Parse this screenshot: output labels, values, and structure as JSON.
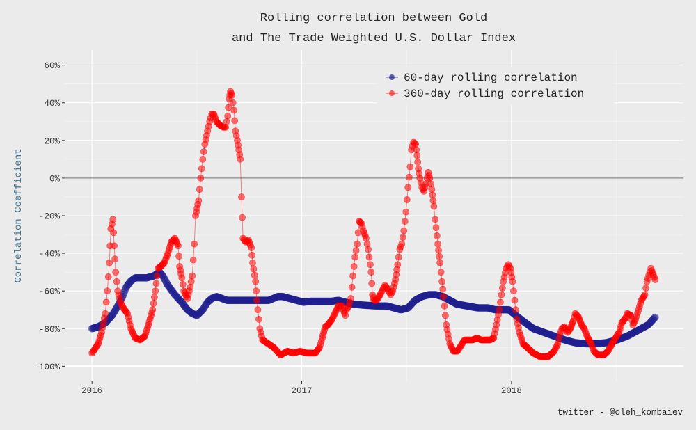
{
  "chart_data": {
    "type": "line",
    "title": "Rolling correlation between Gold",
    "subtitle": "and The Trade Weighted U.S. Dollar Index",
    "xlabel": "",
    "ylabel": "Correlation Coefficient",
    "caption": "twitter - @oleh_kombaiev",
    "x_ticks": [
      {
        "value": 2016,
        "label": "2016"
      },
      {
        "value": 2017,
        "label": "2017"
      },
      {
        "value": 2018,
        "label": "2018"
      }
    ],
    "y_ticks": [
      {
        "value": 60,
        "label": "60%"
      },
      {
        "value": 40,
        "label": "40%"
      },
      {
        "value": 20,
        "label": "20%"
      },
      {
        "value": 0,
        "label": "0%"
      },
      {
        "value": -20,
        "label": "-20%"
      },
      {
        "value": -40,
        "label": "-40%"
      },
      {
        "value": -60,
        "label": "-60%"
      },
      {
        "value": -80,
        "label": "-80%"
      },
      {
        "value": -100,
        "label": "-100%"
      }
    ],
    "xlim": [
      2015.87,
      2018.82
    ],
    "ylim": [
      -108,
      68
    ],
    "grid": true,
    "reference_line_y": 0,
    "legend_position": "top-right",
    "series": [
      {
        "name": "60-day rolling correlation",
        "color": "#1f1f8f",
        "x_unit": "year (decimal)",
        "points": [
          [
            2016.0,
            -80
          ],
          [
            2016.03,
            -79
          ],
          [
            2016.063,
            -77
          ],
          [
            2016.096,
            -73
          ],
          [
            2016.123,
            -68
          ],
          [
            2016.146,
            -63
          ],
          [
            2016.163,
            -58
          ],
          [
            2016.183,
            -55
          ],
          [
            2016.206,
            -53
          ],
          [
            2016.229,
            -53
          ],
          [
            2016.262,
            -53
          ],
          [
            2016.295,
            -52
          ],
          [
            2016.322,
            -50
          ],
          [
            2016.338,
            -52
          ],
          [
            2016.362,
            -57
          ],
          [
            2016.395,
            -62
          ],
          [
            2016.428,
            -66
          ],
          [
            2016.455,
            -70
          ],
          [
            2016.478,
            -72
          ],
          [
            2016.501,
            -73
          ],
          [
            2016.528,
            -70
          ],
          [
            2016.551,
            -66
          ],
          [
            2016.571,
            -64
          ],
          [
            2016.594,
            -63
          ],
          [
            2016.62,
            -64
          ],
          [
            2016.644,
            -65
          ],
          [
            2016.693,
            -65
          ],
          [
            2016.743,
            -65
          ],
          [
            2016.8,
            -65
          ],
          [
            2016.843,
            -65
          ],
          [
            2016.886,
            -63
          ],
          [
            2016.909,
            -63
          ],
          [
            2016.942,
            -64
          ],
          [
            2016.976,
            -65
          ],
          [
            2017.009,
            -66
          ],
          [
            2017.042,
            -65.5
          ],
          [
            2017.092,
            -65.5
          ],
          [
            2017.141,
            -65.5
          ],
          [
            2017.175,
            -65
          ],
          [
            2017.208,
            -66
          ],
          [
            2017.241,
            -67
          ],
          [
            2017.291,
            -67.5
          ],
          [
            2017.357,
            -68
          ],
          [
            2017.407,
            -68
          ],
          [
            2017.44,
            -69
          ],
          [
            2017.473,
            -70
          ],
          [
            2017.507,
            -69
          ],
          [
            2017.54,
            -65
          ],
          [
            2017.573,
            -63
          ],
          [
            2017.606,
            -62
          ],
          [
            2017.639,
            -62
          ],
          [
            2017.673,
            -63
          ],
          [
            2017.706,
            -65
          ],
          [
            2017.739,
            -67
          ],
          [
            2017.789,
            -68
          ],
          [
            2017.839,
            -69
          ],
          [
            2017.888,
            -69
          ],
          [
            2017.922,
            -70
          ],
          [
            2017.955,
            -70
          ],
          [
            2017.988,
            -70
          ],
          [
            2018.021,
            -73
          ],
          [
            2018.055,
            -76
          ],
          [
            2018.104,
            -80
          ],
          [
            2018.154,
            -82
          ],
          [
            2018.204,
            -84
          ],
          [
            2018.254,
            -86
          ],
          [
            2018.303,
            -87.5
          ],
          [
            2018.353,
            -88
          ],
          [
            2018.403,
            -88
          ],
          [
            2018.453,
            -87.5
          ],
          [
            2018.503,
            -86
          ],
          [
            2018.552,
            -84
          ],
          [
            2018.602,
            -81
          ],
          [
            2018.652,
            -78
          ],
          [
            2018.685,
            -74
          ]
        ]
      },
      {
        "name": "360-day rolling correlation",
        "color": "#ff0000",
        "x_unit": "year (decimal)",
        "points": [
          [
            2016.0,
            -93
          ],
          [
            2016.03,
            -88
          ],
          [
            2016.046,
            -82
          ],
          [
            2016.063,
            -72
          ],
          [
            2016.073,
            -60
          ],
          [
            2016.083,
            -45
          ],
          [
            2016.09,
            -27
          ],
          [
            2016.1,
            -22
          ],
          [
            2016.106,
            -36
          ],
          [
            2016.113,
            -50
          ],
          [
            2016.123,
            -60
          ],
          [
            2016.136,
            -66
          ],
          [
            2016.149,
            -69
          ],
          [
            2016.169,
            -72
          ],
          [
            2016.186,
            -80
          ],
          [
            2016.206,
            -85
          ],
          [
            2016.229,
            -86
          ],
          [
            2016.252,
            -84
          ],
          [
            2016.269,
            -78
          ],
          [
            2016.289,
            -70
          ],
          [
            2016.302,
            -60
          ],
          [
            2016.315,
            -48
          ],
          [
            2016.328,
            -47
          ],
          [
            2016.345,
            -45
          ],
          [
            2016.362,
            -40
          ],
          [
            2016.378,
            -34
          ],
          [
            2016.395,
            -32
          ],
          [
            2016.411,
            -36
          ],
          [
            2016.418,
            -47
          ],
          [
            2016.428,
            -53
          ],
          [
            2016.438,
            -60
          ],
          [
            2016.455,
            -64
          ],
          [
            2016.468,
            -58
          ],
          [
            2016.478,
            -52
          ],
          [
            2016.488,
            -35
          ],
          [
            2016.494,
            -20
          ],
          [
            2016.508,
            -12
          ],
          [
            2016.518,
            0
          ],
          [
            2016.528,
            10
          ],
          [
            2016.538,
            18
          ],
          [
            2016.551,
            25
          ],
          [
            2016.561,
            30
          ],
          [
            2016.571,
            34
          ],
          [
            2016.581,
            34
          ],
          [
            2016.594,
            30
          ],
          [
            2016.611,
            28
          ],
          [
            2016.627,
            27
          ],
          [
            2016.637,
            27
          ],
          [
            2016.647,
            33
          ],
          [
            2016.654,
            42
          ],
          [
            2016.66,
            46
          ],
          [
            2016.667,
            44
          ],
          [
            2016.677,
            36
          ],
          [
            2016.684,
            25
          ],
          [
            2016.693,
            20
          ],
          [
            2016.707,
            10
          ],
          [
            2016.713,
            -10
          ],
          [
            2016.72,
            -32
          ],
          [
            2016.733,
            -34
          ],
          [
            2016.746,
            -33
          ],
          [
            2016.76,
            -37
          ],
          [
            2016.766,
            -45
          ],
          [
            2016.78,
            -55
          ],
          [
            2016.786,
            -65
          ],
          [
            2016.8,
            -80
          ],
          [
            2016.813,
            -86
          ],
          [
            2016.84,
            -88
          ],
          [
            2016.866,
            -90
          ],
          [
            2016.899,
            -94
          ],
          [
            2016.932,
            -92
          ],
          [
            2016.959,
            -93
          ],
          [
            2016.992,
            -92
          ],
          [
            2017.025,
            -93
          ],
          [
            2017.065,
            -93
          ],
          [
            2017.085,
            -90
          ],
          [
            2017.098,
            -85
          ],
          [
            2017.112,
            -79
          ],
          [
            2017.125,
            -78
          ],
          [
            2017.145,
            -75
          ],
          [
            2017.158,
            -72
          ],
          [
            2017.175,
            -68
          ],
          [
            2017.191,
            -68
          ],
          [
            2017.208,
            -73
          ],
          [
            2017.214,
            -70
          ],
          [
            2017.224,
            -68
          ],
          [
            2017.234,
            -64
          ],
          [
            2017.244,
            -52
          ],
          [
            2017.254,
            -42
          ],
          [
            2017.264,
            -35
          ],
          [
            2017.274,
            -23
          ],
          [
            2017.284,
            -24
          ],
          [
            2017.294,
            -28
          ],
          [
            2017.307,
            -32
          ],
          [
            2017.317,
            -38
          ],
          [
            2017.331,
            -50
          ],
          [
            2017.337,
            -62
          ],
          [
            2017.344,
            -65
          ],
          [
            2017.357,
            -65
          ],
          [
            2017.374,
            -62
          ],
          [
            2017.387,
            -59
          ],
          [
            2017.397,
            -57
          ],
          [
            2017.41,
            -59
          ],
          [
            2017.424,
            -62
          ],
          [
            2017.434,
            -60
          ],
          [
            2017.447,
            -54
          ],
          [
            2017.457,
            -46
          ],
          [
            2017.467,
            -38
          ],
          [
            2017.477,
            -35
          ],
          [
            2017.487,
            -28
          ],
          [
            2017.497,
            -18
          ],
          [
            2017.507,
            -5
          ],
          [
            2017.517,
            6
          ],
          [
            2017.523,
            15
          ],
          [
            2017.533,
            19
          ],
          [
            2017.543,
            18
          ],
          [
            2017.55,
            12
          ],
          [
            2017.556,
            5
          ],
          [
            2017.563,
            0
          ],
          [
            2017.573,
            -5
          ],
          [
            2017.583,
            -7
          ],
          [
            2017.593,
            -3
          ],
          [
            2017.603,
            3
          ],
          [
            2017.61,
            0
          ],
          [
            2017.62,
            -6
          ],
          [
            2017.63,
            -15
          ],
          [
            2017.636,
            -22
          ],
          [
            2017.649,
            -35
          ],
          [
            2017.659,
            -45
          ],
          [
            2017.669,
            -55
          ],
          [
            2017.676,
            -63
          ],
          [
            2017.689,
            -78
          ],
          [
            2017.706,
            -88
          ],
          [
            2017.723,
            -92
          ],
          [
            2017.742,
            -92
          ],
          [
            2017.759,
            -89
          ],
          [
            2017.776,
            -86
          ],
          [
            2017.796,
            -86
          ],
          [
            2017.816,
            -86
          ],
          [
            2017.835,
            -85
          ],
          [
            2017.855,
            -86
          ],
          [
            2017.875,
            -86
          ],
          [
            2017.898,
            -86
          ],
          [
            2017.915,
            -85
          ],
          [
            2017.928,
            -78
          ],
          [
            2017.942,
            -70
          ],
          [
            2017.952,
            -62
          ],
          [
            2017.961,
            -55
          ],
          [
            2017.975,
            -48
          ],
          [
            2017.985,
            -46
          ],
          [
            2017.995,
            -48
          ],
          [
            2018.005,
            -55
          ],
          [
            2018.015,
            -65
          ],
          [
            2018.025,
            -75
          ],
          [
            2018.038,
            -82
          ],
          [
            2018.055,
            -88
          ],
          [
            2018.075,
            -90
          ],
          [
            2018.104,
            -93
          ],
          [
            2018.138,
            -95
          ],
          [
            2018.174,
            -95
          ],
          [
            2018.204,
            -92
          ],
          [
            2018.221,
            -88
          ],
          [
            2018.231,
            -83
          ],
          [
            2018.241,
            -80
          ],
          [
            2018.254,
            -79
          ],
          [
            2018.267,
            -82
          ],
          [
            2018.28,
            -80
          ],
          [
            2018.294,
            -76
          ],
          [
            2018.304,
            -72
          ],
          [
            2018.32,
            -74
          ],
          [
            2018.334,
            -78
          ],
          [
            2018.347,
            -80
          ],
          [
            2018.36,
            -84
          ],
          [
            2018.38,
            -88
          ],
          [
            2018.393,
            -92
          ],
          [
            2018.413,
            -94
          ],
          [
            2018.44,
            -94
          ],
          [
            2018.46,
            -92
          ],
          [
            2018.48,
            -88
          ],
          [
            2018.496,
            -85
          ],
          [
            2018.513,
            -82
          ],
          [
            2018.526,
            -77
          ],
          [
            2018.546,
            -74
          ],
          [
            2018.552,
            -72
          ],
          [
            2018.569,
            -73
          ],
          [
            2018.579,
            -78
          ],
          [
            2018.592,
            -75
          ],
          [
            2018.606,
            -70
          ],
          [
            2018.619,
            -65
          ],
          [
            2018.636,
            -62
          ],
          [
            2018.646,
            -55
          ],
          [
            2018.659,
            -50
          ],
          [
            2018.665,
            -48
          ],
          [
            2018.685,
            -54
          ]
        ]
      }
    ]
  }
}
